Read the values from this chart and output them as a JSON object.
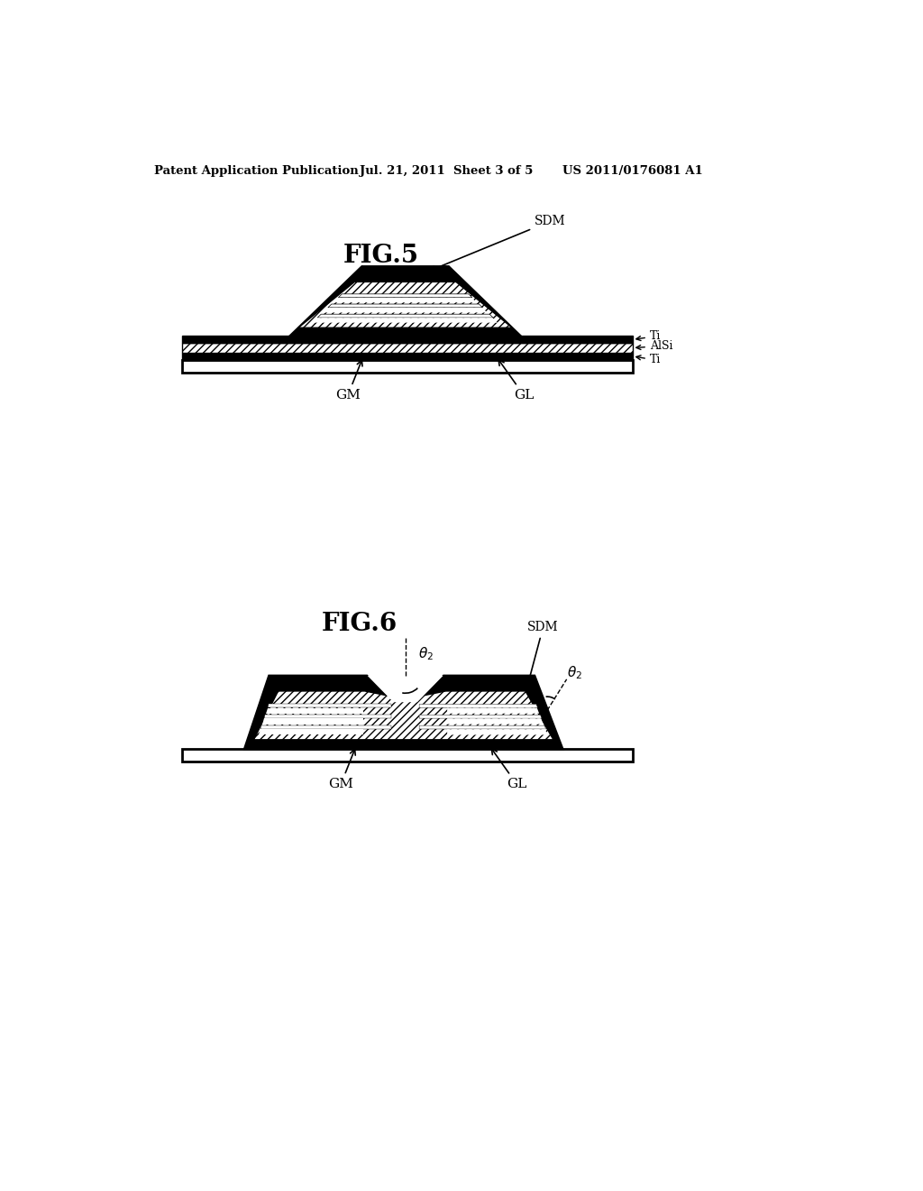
{
  "background_color": "#ffffff",
  "header_left": "Patent Application Publication",
  "header_center": "Jul. 21, 2011  Sheet 3 of 5",
  "header_right": "US 2011/0176081 A1",
  "fig5_title": "FIG.5",
  "fig6_title": "FIG.6",
  "black": "#000000",
  "white": "#ffffff"
}
